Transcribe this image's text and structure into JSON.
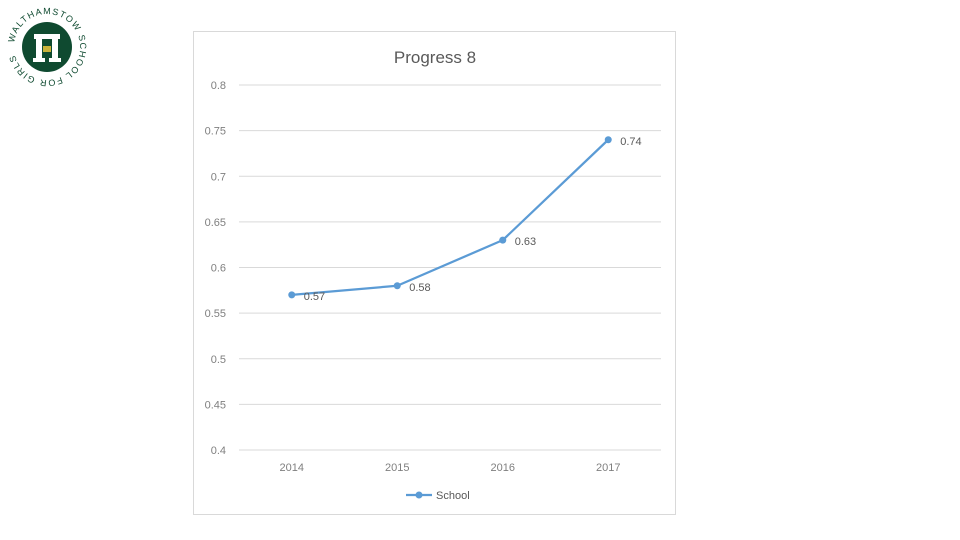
{
  "logo": {
    "text": "WALTHAMSTOW SCHOOL FOR GIRLS",
    "colors": {
      "green": "#0f4a30",
      "gold": "#c9b23a",
      "white": "#ffffff"
    }
  },
  "chart_data": {
    "type": "line",
    "title": "Progress 8",
    "xlabel": "",
    "ylabel": "",
    "categories": [
      "2014",
      "2015",
      "2016",
      "2017"
    ],
    "series": [
      {
        "name": "School",
        "values": [
          0.57,
          0.58,
          0.63,
          0.74
        ],
        "color": "#5b9bd5"
      }
    ],
    "data_labels": [
      "0.57",
      "0.58",
      "0.63",
      "0.74"
    ],
    "ylim": [
      0.4,
      0.8
    ],
    "y_ticks": [
      0.4,
      0.45,
      0.5,
      0.55,
      0.6,
      0.65,
      0.7,
      0.75,
      0.8
    ],
    "y_tick_labels": [
      "0.4",
      "0.45",
      "0.5",
      "0.55",
      "0.6",
      "0.65",
      "0.7",
      "0.75",
      "0.8"
    ],
    "grid": true,
    "legend": "bottom",
    "colors": {
      "grid": "#d9d9d9",
      "axis_text": "#7f7f7f",
      "label_text": "#595959"
    }
  }
}
